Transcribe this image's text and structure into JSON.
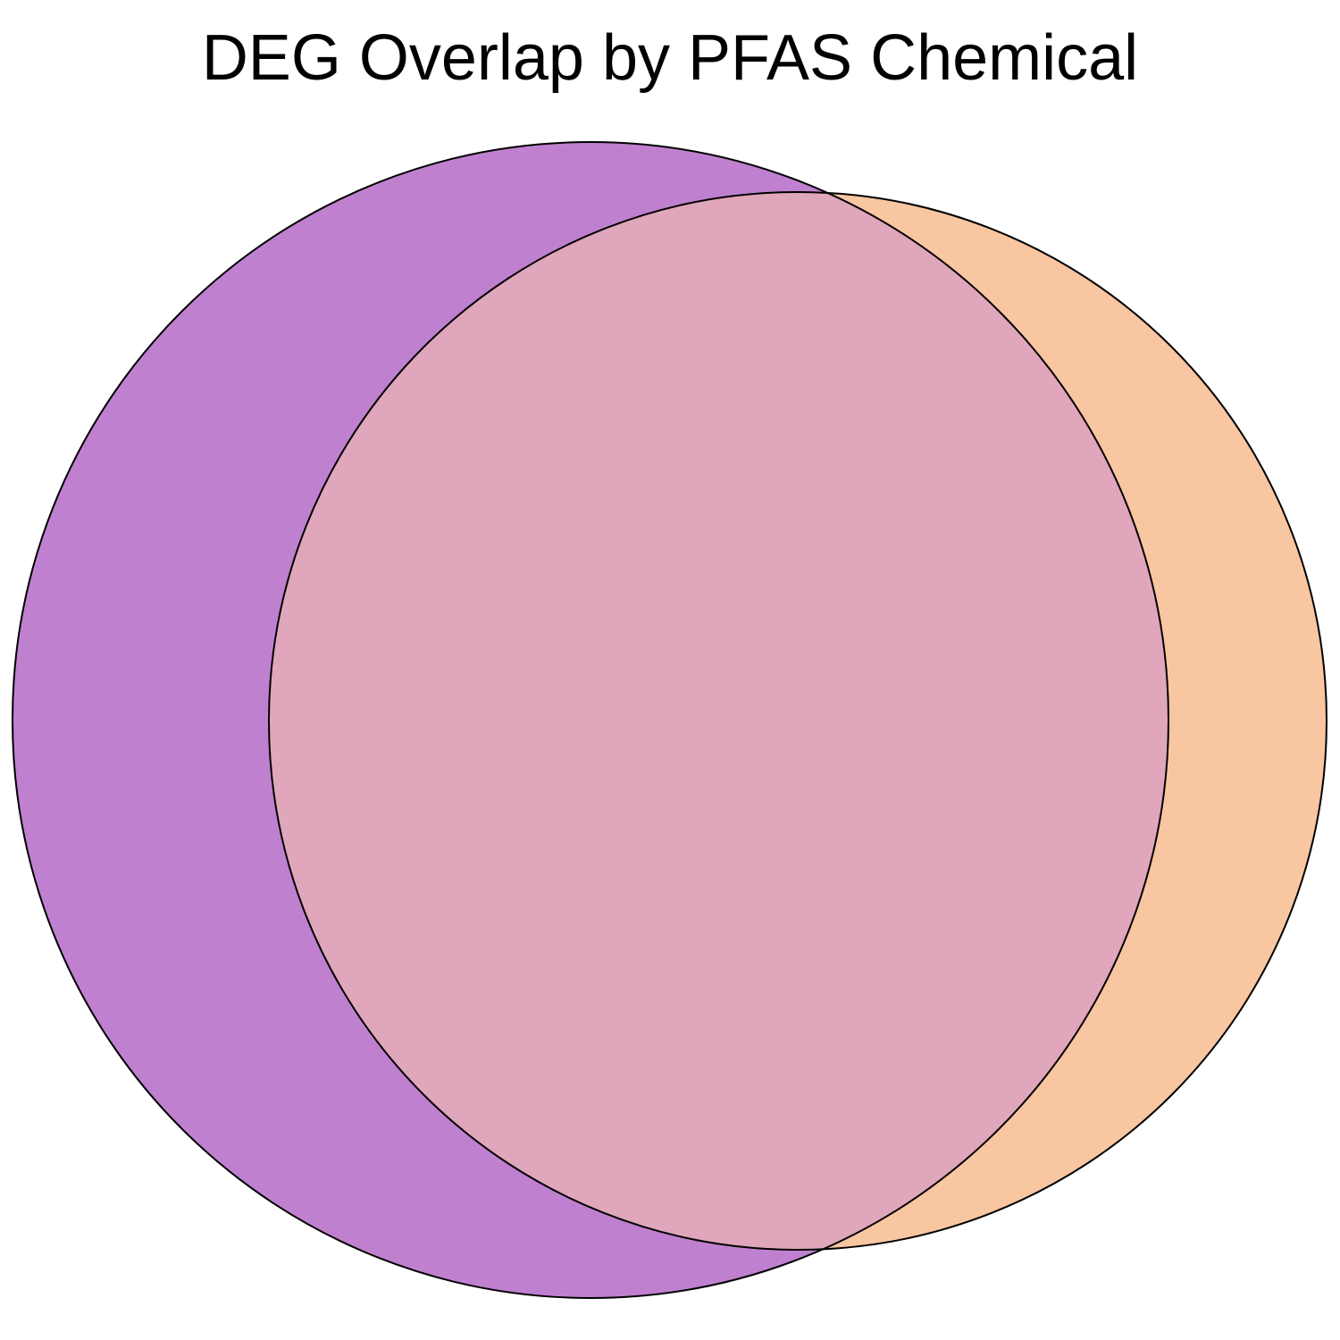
{
  "title": "DEG Overlap by PFAS Chemical",
  "diagram": {
    "type": "venn",
    "sets": [
      {
        "id": "set-a",
        "color": "#c080d0"
      },
      {
        "id": "set-b",
        "color": "#f9c6a2"
      }
    ],
    "overlap_color": "#e0a6bc",
    "outline_color": "#000000"
  }
}
